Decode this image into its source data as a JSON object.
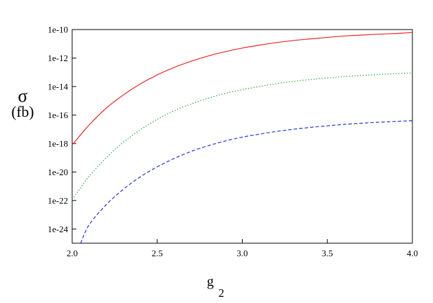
{
  "chart_data": {
    "type": "line",
    "xlabel": "g",
    "xlabel_sub": "2",
    "ylabel": "σ",
    "ylabel_unit": "(fb)",
    "yscale": "log",
    "xlim": [
      2.0,
      4.0
    ],
    "ylim": [
      1e-25,
      1e-10
    ],
    "x_ticks": [
      "2.0",
      "2.5",
      "3.0",
      "3.5",
      "4.0"
    ],
    "x_tick_values": [
      2.0,
      2.5,
      3.0,
      3.5,
      4.0
    ],
    "y_ticks": [
      "1e-24",
      "1e-22",
      "1e-20",
      "1e-18",
      "1e-16",
      "1e-14",
      "1e-12",
      "1e-10"
    ],
    "y_tick_values": [
      1e-24,
      1e-22,
      1e-20,
      1e-18,
      1e-16,
      1e-14,
      1e-12,
      1e-10
    ],
    "grid": false,
    "series": [
      {
        "color": "#e8262a",
        "style": "solid",
        "x": [
          2.0,
          2.1,
          2.2,
          2.3,
          2.4,
          2.5,
          2.6,
          2.7,
          2.8,
          2.9,
          3.0,
          3.1,
          3.2,
          3.3,
          3.4,
          3.5,
          3.6,
          3.7,
          3.8,
          3.9,
          4.0
        ],
        "y": [
          8e-19,
          2e-17,
          3e-16,
          2.5e-15,
          1.5e-14,
          6.5e-14,
          2.2e-13,
          6e-13,
          1.4e-12,
          2.8e-12,
          5e-12,
          8e-12,
          1.2e-11,
          1.7e-11,
          2.2e-11,
          2.8e-11,
          3.5e-11,
          4.1e-11,
          4.7e-11,
          5.3e-11,
          6.2e-11
        ]
      },
      {
        "color": "#1a9e2a",
        "style": "dotted",
        "x": [
          2.0,
          2.1,
          2.2,
          2.3,
          2.4,
          2.5,
          2.6,
          2.7,
          2.8,
          2.9,
          3.0,
          3.1,
          3.2,
          3.3,
          3.4,
          3.5,
          3.6,
          3.7,
          3.8,
          3.9,
          4.0
        ],
        "y": [
          1.2e-22,
          5e-21,
          1e-19,
          1.2e-18,
          9e-18,
          5e-17,
          2e-16,
          6e-16,
          1.5e-15,
          3.3e-15,
          6e-15,
          1e-14,
          1.6e-14,
          2.3e-14,
          3.1e-14,
          4e-14,
          5e-14,
          6e-14,
          7e-14,
          8e-14,
          9e-14
        ]
      },
      {
        "color": "#2233dd",
        "style": "dashed",
        "x": [
          2.05,
          2.1,
          2.2,
          2.3,
          2.4,
          2.5,
          2.6,
          2.7,
          2.8,
          2.9,
          3.0,
          3.1,
          3.2,
          3.3,
          3.4,
          3.5,
          3.6,
          3.7,
          3.8,
          3.9,
          4.0
        ],
        "y": [
          1e-25,
          2e-24,
          5e-23,
          6e-22,
          4.5e-21,
          2.3e-20,
          9e-20,
          2.8e-19,
          7e-19,
          1.5e-18,
          2.8e-18,
          4.5e-18,
          7e-18,
          1e-17,
          1.35e-17,
          1.75e-17,
          2.2e-17,
          2.65e-17,
          3.1e-17,
          3.55e-17,
          4e-17
        ]
      }
    ]
  }
}
